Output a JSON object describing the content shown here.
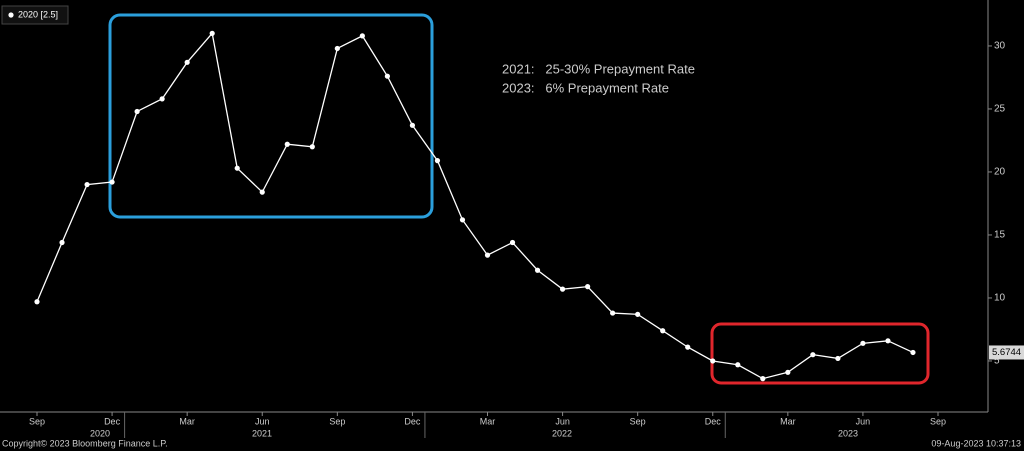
{
  "chart_data": {
    "type": "line",
    "categories": [
      "Sep",
      null,
      null,
      "Dec",
      null,
      null,
      "Mar",
      null,
      null,
      "Jun",
      null,
      null,
      "Sep",
      null,
      null,
      "Dec",
      null,
      null,
      "Mar",
      null,
      null,
      "Jun",
      null,
      null,
      "Sep",
      null,
      null,
      "Dec",
      null,
      null,
      "Mar",
      null,
      null,
      "Jun",
      null,
      null,
      "Sep"
    ],
    "years": [
      "2020",
      "2021",
      "2022",
      "2023"
    ],
    "series": [
      {
        "name": "2020 [2.5]",
        "color": "#ffffff",
        "values": [
          9.7,
          14.4,
          19.0,
          19.2,
          24.8,
          25.8,
          28.7,
          31.0,
          20.3,
          18.4,
          22.2,
          22.0,
          29.8,
          30.8,
          27.6,
          23.7,
          20.9,
          16.2,
          13.4,
          14.4,
          12.2,
          10.7,
          10.9,
          8.8,
          8.7,
          7.4,
          6.1,
          5.0,
          4.7,
          3.6,
          4.1,
          5.5,
          5.2,
          6.4,
          6.6,
          5.6744,
          null
        ]
      }
    ],
    "ylim": [
      0.95,
      33.25
    ],
    "yticks": [
      5,
      10,
      15,
      20,
      25,
      30
    ],
    "annotations": [
      {
        "text": "2021:   25-30% Prepayment Rate",
        "color": "#2b9fdc"
      },
      {
        "text": "2023:   6% Prepayment Rate",
        "color": "#e0262c"
      }
    ],
    "footer_left": "Copyright© 2023 Bloomberg Finance L.P.",
    "footer_right": "09-Aug-2023 10:37:13"
  }
}
